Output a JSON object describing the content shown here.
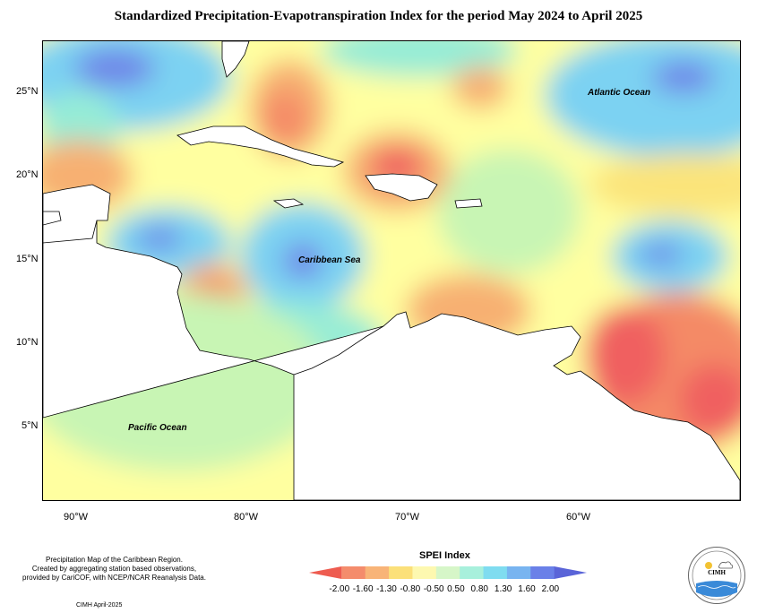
{
  "title": "Standardized Precipitation-Evapotranspiration Index for the period May 2024 to April 2025",
  "map": {
    "lat_labels": [
      "25°N",
      "20°N",
      "15°N",
      "10°N",
      "5°N"
    ],
    "lon_labels": [
      "90°W",
      "80°W",
      "70°W",
      "60°W"
    ],
    "ocean_labels": {
      "atlantic": "Atlantic Ocean",
      "caribbean": "Caribbean Sea",
      "pacific": "Pacific Ocean"
    },
    "colors": {
      "extreme_dry": "#f06060",
      "severe_dry": "#f48a66",
      "moderate_dry": "#f7b072",
      "mild_dry": "#fbe47a",
      "near_normal": "#ffffa0",
      "mild_wet": "#c8f5b4",
      "moderate_wet": "#96ecd6",
      "severe_wet": "#7cd2f2",
      "extreme_wet": "#6f86e8",
      "land_bg": "#ffffff",
      "coast": "#000000"
    }
  },
  "legend": {
    "title": "SPEI Index",
    "ticks": [
      "-2.00",
      "-1.60",
      "-1.30",
      "-0.80",
      "-0.50",
      "0.50",
      "0.80",
      "1.30",
      "1.60",
      "2.00"
    ],
    "colors": [
      "#ee5c50",
      "#f48c6c",
      "#f8b478",
      "#fbe07a",
      "#fdf8b0",
      "#d6f6c8",
      "#a8f0dc",
      "#7fdcf0",
      "#78b4f0",
      "#6a80e8",
      "#5a64d8"
    ]
  },
  "credits": {
    "line1": "Precipitation Map of the Caribbean Region.",
    "line2": "Created by aggregating station based observations,",
    "line3": "provided by CariCOF, with NCEP/NCAR Reanalysis Data.",
    "date": "CIMH April-2025"
  },
  "logo": {
    "text": "CIMH"
  }
}
